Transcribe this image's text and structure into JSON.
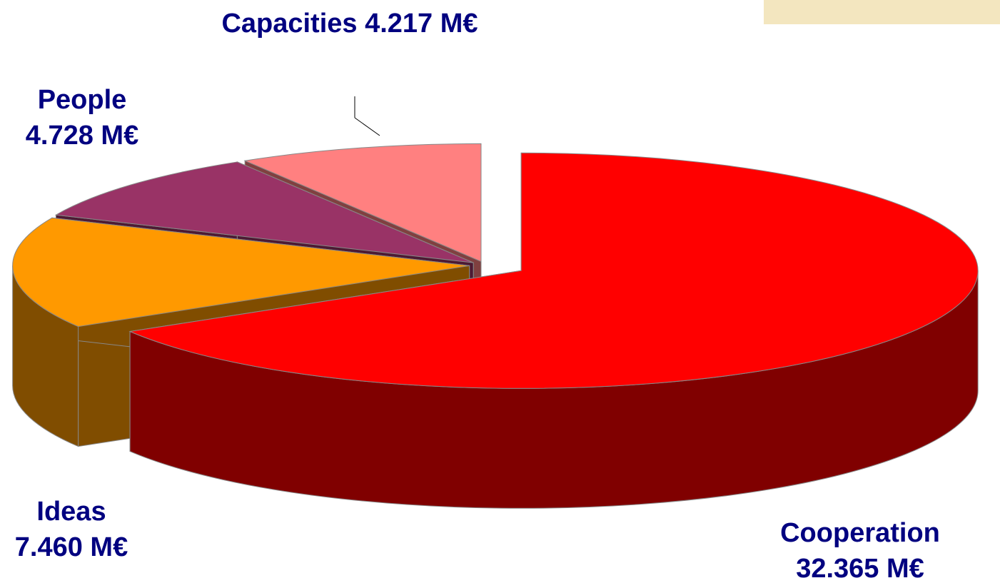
{
  "chart_data": {
    "type": "pie3d",
    "categories": [
      "Cooperation",
      "Ideas",
      "People",
      "Capacities"
    ],
    "values": [
      32.365,
      7.46,
      4.728,
      4.217
    ],
    "value_labels": [
      "32.365 M€",
      "7.460 M€",
      "4.728 M€",
      "4.217 M€"
    ],
    "colors": [
      "#ff0000",
      "#ff9900",
      "#993366",
      "#ff8080"
    ]
  }
}
